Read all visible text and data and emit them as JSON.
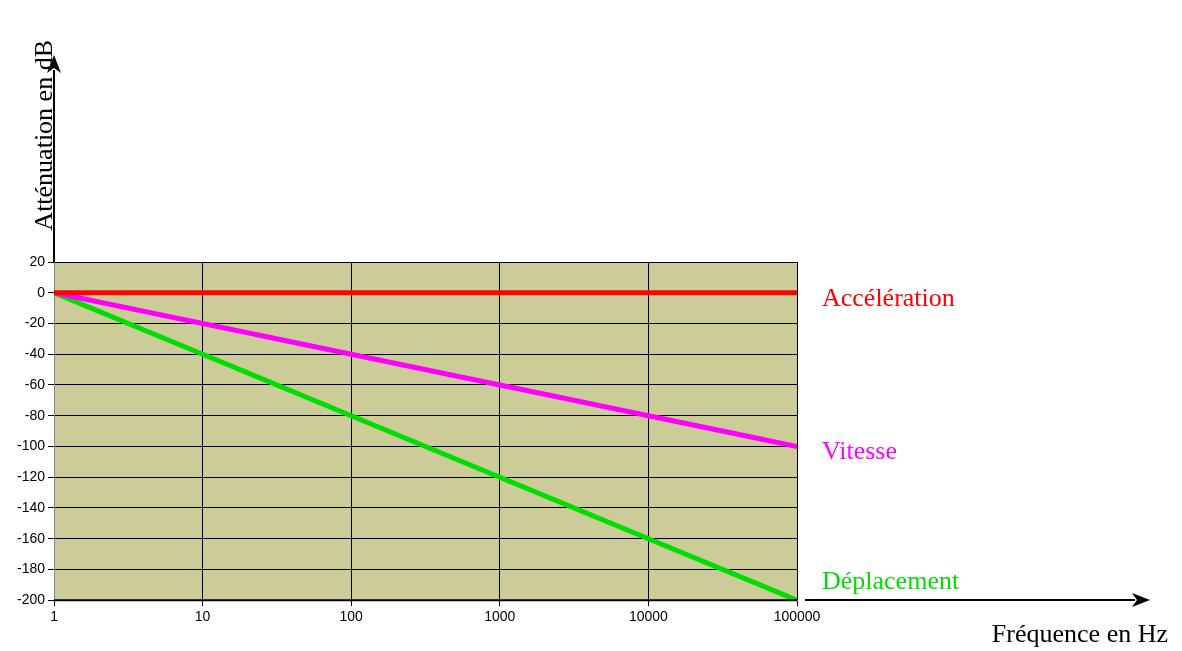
{
  "chart_data": {
    "type": "line",
    "annotations": [
      "Fréquence en Hz"
    ],
    "ylabel": "Atténuation en dB",
    "log": "x",
    "x": [
      1,
      10,
      100,
      1000,
      10000,
      100000
    ],
    "series": [
      {
        "name": "Accélération",
        "color": "#ff0000",
        "values": [
          0,
          0,
          0,
          0,
          0,
          0
        ]
      },
      {
        "name": "Vitesse",
        "color": "#ff00ff",
        "values": [
          0,
          -20,
          -40,
          -60,
          -80,
          -100
        ]
      },
      {
        "name": "Déplacement",
        "color": "#00dd00",
        "values": [
          0,
          -40,
          -80,
          -120,
          -160,
          -200
        ]
      }
    ],
    "xlim": [
      1,
      100000
    ],
    "xticks": [
      1,
      10,
      100,
      1000,
      10000,
      100000
    ],
    "ylim": [
      -200,
      20
    ],
    "yticks": [
      20,
      0,
      -20,
      -40,
      -60,
      -80,
      -100,
      -120,
      -140,
      -160,
      -180,
      -200
    ],
    "grid": true,
    "legend": false,
    "marker": "none",
    "line_style": "solid"
  }
}
